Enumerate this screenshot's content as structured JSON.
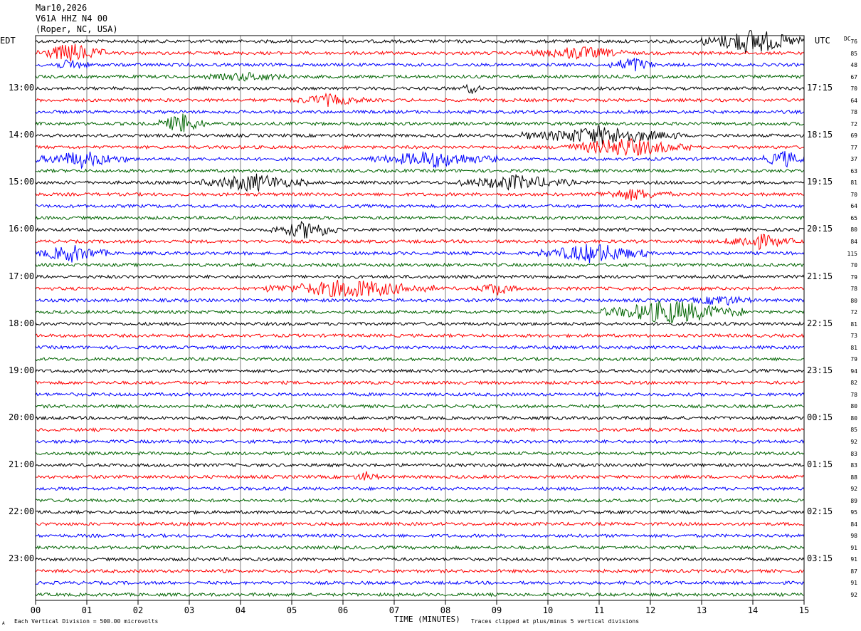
{
  "header": {
    "date": "Mar10,2026",
    "station": "V61A HHZ N4 00",
    "location": "(Roper, NC, USA)"
  },
  "left_tz": "EDT",
  "right_tz": "UTC",
  "dc_label": "DC",
  "footer": {
    "scale_note": "Each Vertical Division =  500.00 microvolts",
    "clip_note": "Traces clipped at plus/minus 5 vertical divisions",
    "corner_mark": "A"
  },
  "chart_data": {
    "type": "line",
    "title": "",
    "xlabel": "TIME (MINUTES)",
    "ylabel": "",
    "xlim": [
      0,
      15
    ],
    "x_ticks": [
      "00",
      "01",
      "02",
      "03",
      "04",
      "05",
      "06",
      "07",
      "08",
      "09",
      "10",
      "11",
      "12",
      "13",
      "14",
      "15"
    ],
    "grid": "vertical lines at each minute",
    "trace_colors": [
      "#000000",
      "#ff0000",
      "#0000ff",
      "#006400"
    ],
    "left_hour_labels": [
      "13:00",
      "14:00",
      "15:00",
      "16:00",
      "17:00",
      "18:00",
      "19:00",
      "20:00",
      "21:00",
      "22:00",
      "23:00"
    ],
    "right_hour_labels": [
      "17:15",
      "18:15",
      "19:15",
      "20:15",
      "21:15",
      "22:15",
      "23:15",
      "00:15",
      "01:15",
      "02:15",
      "03:15"
    ],
    "dc_offsets": [
      76,
      85,
      48,
      67,
      70,
      64,
      78,
      72,
      69,
      77,
      37,
      63,
      81,
      70,
      64,
      65,
      80,
      84,
      115,
      70,
      79,
      78,
      80,
      72,
      81,
      73,
      81,
      79,
      94,
      82,
      78,
      80,
      80,
      85,
      92,
      83,
      83,
      88,
      92,
      89,
      95,
      84,
      98,
      91,
      91,
      87,
      91,
      92
    ],
    "events": [
      {
        "trace": 0,
        "start_min": 13.0,
        "end_min": 15.0,
        "amplitude": 4.2
      },
      {
        "trace": 1,
        "start_min": 0.0,
        "end_min": 1.4,
        "amplitude": 3.2
      },
      {
        "trace": 1,
        "start_min": 9.6,
        "end_min": 11.6,
        "amplitude": 2.0
      },
      {
        "trace": 2,
        "start_min": 0.3,
        "end_min": 1.1,
        "amplitude": 1.6
      },
      {
        "trace": 2,
        "start_min": 11.2,
        "end_min": 12.1,
        "amplitude": 2.6
      },
      {
        "trace": 3,
        "start_min": 3.3,
        "end_min": 5.0,
        "amplitude": 1.2
      },
      {
        "trace": 4,
        "start_min": 8.3,
        "end_min": 8.7,
        "amplitude": 1.5
      },
      {
        "trace": 5,
        "start_min": 5.0,
        "end_min": 6.4,
        "amplitude": 1.8
      },
      {
        "trace": 7,
        "start_min": 2.4,
        "end_min": 3.3,
        "amplitude": 3.4
      },
      {
        "trace": 8,
        "start_min": 9.5,
        "end_min": 12.6,
        "amplitude": 3.0
      },
      {
        "trace": 9,
        "start_min": 10.2,
        "end_min": 12.8,
        "amplitude": 3.0
      },
      {
        "trace": 10,
        "start_min": 0.0,
        "end_min": 1.8,
        "amplitude": 2.6
      },
      {
        "trace": 10,
        "start_min": 6.5,
        "end_min": 9.0,
        "amplitude": 2.6
      },
      {
        "trace": 10,
        "start_min": 14.2,
        "end_min": 15.0,
        "amplitude": 2.8
      },
      {
        "trace": 12,
        "start_min": 3.2,
        "end_min": 5.3,
        "amplitude": 2.9
      },
      {
        "trace": 12,
        "start_min": 8.2,
        "end_min": 10.5,
        "amplitude": 2.4
      },
      {
        "trace": 13,
        "start_min": 10.9,
        "end_min": 12.4,
        "amplitude": 1.8
      },
      {
        "trace": 16,
        "start_min": 4.6,
        "end_min": 6.0,
        "amplitude": 2.8
      },
      {
        "trace": 17,
        "start_min": 13.4,
        "end_min": 14.8,
        "amplitude": 2.4
      },
      {
        "trace": 18,
        "start_min": 0.0,
        "end_min": 1.4,
        "amplitude": 2.8
      },
      {
        "trace": 18,
        "start_min": 9.8,
        "end_min": 12.0,
        "amplitude": 3.2
      },
      {
        "trace": 21,
        "start_min": 4.5,
        "end_min": 7.8,
        "amplitude": 3.0
      },
      {
        "trace": 21,
        "start_min": 8.6,
        "end_min": 9.4,
        "amplitude": 2.0
      },
      {
        "trace": 22,
        "start_min": 12.8,
        "end_min": 14.0,
        "amplitude": 1.6
      },
      {
        "trace": 23,
        "start_min": 11.0,
        "end_min": 13.8,
        "amplitude": 4.0
      },
      {
        "trace": 37,
        "start_min": 6.2,
        "end_min": 6.7,
        "amplitude": 1.5
      }
    ]
  }
}
